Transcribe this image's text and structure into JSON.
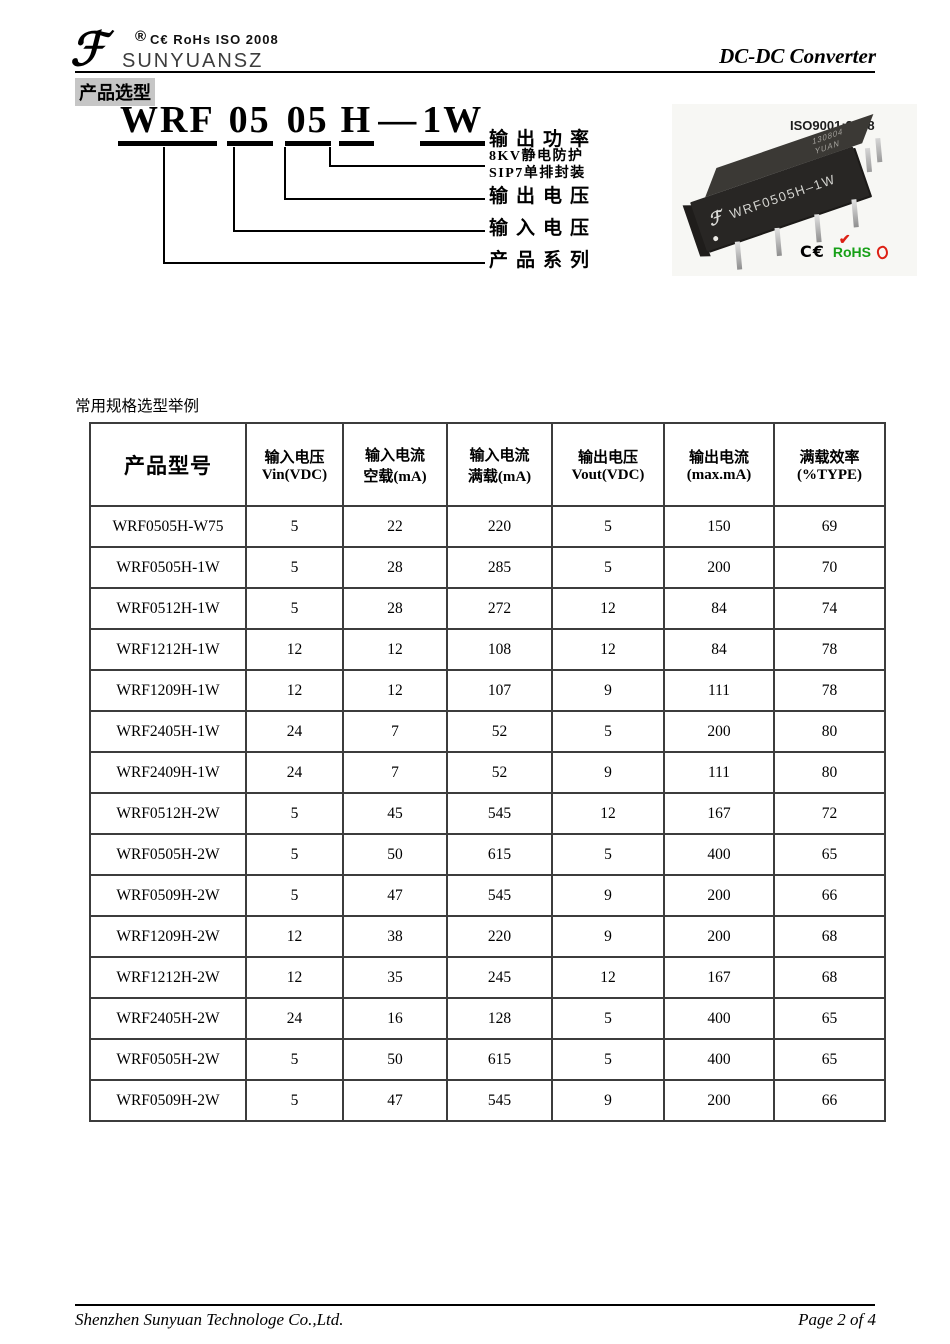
{
  "header": {
    "logo_glyph": "ℱ",
    "reg_mark": "®",
    "cert_text": "C€  RoHs   ISO 2008",
    "brand": "SUNYUANSZ",
    "doc_title": "DC-DC Converter"
  },
  "sections": {
    "product_selection": "产品选型",
    "examples_title": "常用规格选型举例"
  },
  "part_number_diagram": {
    "segments": [
      "WRF",
      "05",
      "05",
      "H",
      "—",
      "1W"
    ],
    "labels": [
      "输出功率",
      "8KV静电防护",
      "SIP7单排封装",
      "输出电压",
      "输入电压",
      "产品系列"
    ]
  },
  "product_photo": {
    "iso_label": "ISO9001:2008",
    "module_logo_glyph": "ℱ",
    "module_marking": "WRF0505H–1W",
    "top_marking_line1": "130804",
    "top_marking_line2": "YUAN",
    "ce_label": "C€",
    "rohs_label": "RoHS",
    "check_glyph": "✔"
  },
  "colors": {
    "rohs_green": "#17a017",
    "check_red": "#dd2014",
    "highlight_gray": "#c6c6c6"
  },
  "spec_table": {
    "columns": [
      {
        "line1": "产品型号",
        "line2": ""
      },
      {
        "line1": "输入电压",
        "line2": "Vin(VDC)"
      },
      {
        "line1": "输入电流",
        "line2": "空载(mA)"
      },
      {
        "line1": "输入电流",
        "line2": "满载(mA)"
      },
      {
        "line1": "输出电压",
        "line2": "Vout(VDC)"
      },
      {
        "line1": "输出电流",
        "line2": "(max.mA)"
      },
      {
        "line1": "满载效率",
        "line2": "(%TYPE)"
      }
    ],
    "rows": [
      [
        "WRF0505H-W75",
        "5",
        "22",
        "220",
        "5",
        "150",
        "69"
      ],
      [
        "WRF0505H-1W",
        "5",
        "28",
        "285",
        "5",
        "200",
        "70"
      ],
      [
        "WRF0512H-1W",
        "5",
        "28",
        "272",
        "12",
        "84",
        "74"
      ],
      [
        "WRF1212H-1W",
        "12",
        "12",
        "108",
        "12",
        "84",
        "78"
      ],
      [
        "WRF1209H-1W",
        "12",
        "12",
        "107",
        "9",
        "111",
        "78"
      ],
      [
        "WRF2405H-1W",
        "24",
        "7",
        "52",
        "5",
        "200",
        "80"
      ],
      [
        "WRF2409H-1W",
        "24",
        "7",
        "52",
        "9",
        "111",
        "80"
      ],
      [
        "WRF0512H-2W",
        "5",
        "45",
        "545",
        "12",
        "167",
        "72"
      ],
      [
        "WRF0505H-2W",
        "5",
        "50",
        "615",
        "5",
        "400",
        "65"
      ],
      [
        "WRF0509H-2W",
        "5",
        "47",
        "545",
        "9",
        "200",
        "66"
      ],
      [
        "WRF1209H-2W",
        "12",
        "38",
        "220",
        "9",
        "200",
        "68"
      ],
      [
        "WRF1212H-2W",
        "12",
        "35",
        "245",
        "12",
        "167",
        "68"
      ],
      [
        "WRF2405H-2W",
        "24",
        "16",
        "128",
        "5",
        "400",
        "65"
      ],
      [
        "WRF0505H-2W",
        "5",
        "50",
        "615",
        "5",
        "400",
        "65"
      ],
      [
        "WRF0509H-2W",
        "5",
        "47",
        "545",
        "9",
        "200",
        "66"
      ]
    ]
  },
  "footer": {
    "company": "Shenzhen Sunyuan Technologe Co.,Ltd.",
    "page_label": "Page 2 of 4"
  }
}
